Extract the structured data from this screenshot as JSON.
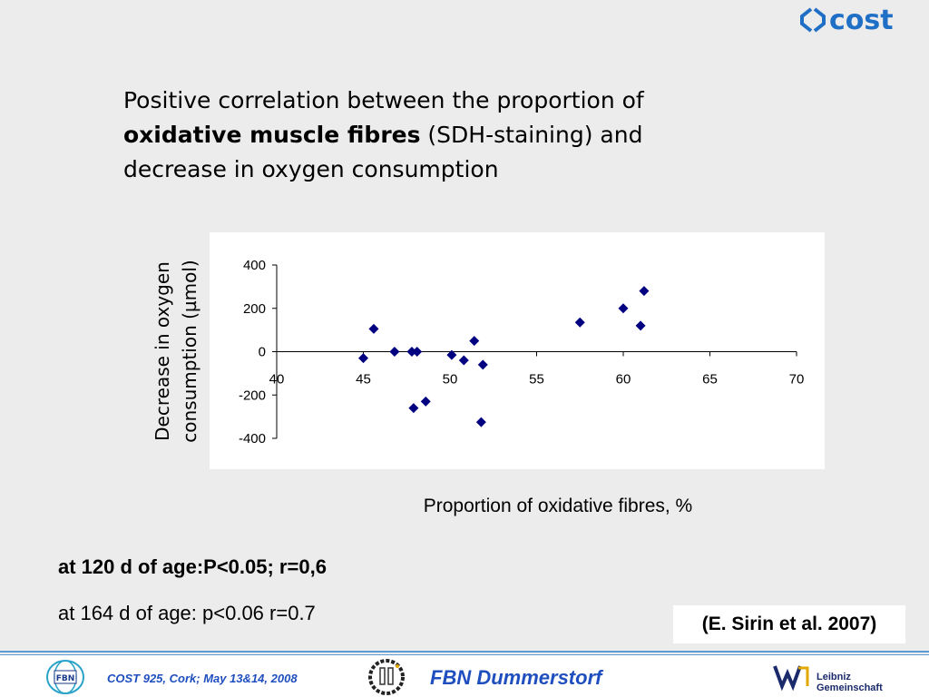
{
  "slide": {
    "title_part1": "Positive correlation between the proportion of",
    "title_bold": "oxidative muscle fibres",
    "title_part2": " (SDH-staining) and",
    "title_part3": "decrease in oxygen consumption",
    "note1": "at 120 d of age:P<0.05; r=0,6",
    "note2": "at 164 d of age: p<0.06 r=0.7",
    "citation": "(E. Sirin et al. 2007)"
  },
  "footer": {
    "meeting": "COST 925, Cork; May 13&14, 2008",
    "institute": "FBN Dummerstorf",
    "fbn_logo_text": "FBN",
    "leibniz_line1": "Leibniz",
    "leibniz_line2": "Gemeinschaft",
    "accent_color": "#5b9bd5",
    "text_color": "#1f4fbf"
  },
  "header": {
    "logo_text": "cost",
    "logo_color": "#1f6fc6"
  },
  "chart_data": {
    "type": "scatter",
    "xlabel": "Proportion of oxidative fibres, %",
    "ylabel_line1": "Decrease in oxygen",
    "ylabel_line2": "consumption (µmol)",
    "xlim": [
      40,
      70
    ],
    "ylim": [
      -400,
      400
    ],
    "x_ticks": [
      40,
      45,
      50,
      55,
      60,
      65,
      70
    ],
    "y_ticks": [
      400,
      200,
      0,
      -200,
      -400
    ],
    "marker_color": "#000080",
    "marker": "diamond",
    "grid": false,
    "points": [
      {
        "x": 45.0,
        "y": -30
      },
      {
        "x": 45.6,
        "y": 105
      },
      {
        "x": 46.8,
        "y": 0
      },
      {
        "x": 47.8,
        "y": 0
      },
      {
        "x": 48.1,
        "y": 0
      },
      {
        "x": 47.9,
        "y": -260
      },
      {
        "x": 48.6,
        "y": -230
      },
      {
        "x": 50.1,
        "y": -15
      },
      {
        "x": 50.8,
        "y": -40
      },
      {
        "x": 51.4,
        "y": 50
      },
      {
        "x": 51.8,
        "y": -325
      },
      {
        "x": 51.9,
        "y": -60
      },
      {
        "x": 57.5,
        "y": 135
      },
      {
        "x": 60.0,
        "y": 200
      },
      {
        "x": 61.0,
        "y": 120
      },
      {
        "x": 61.2,
        "y": 280
      }
    ]
  }
}
